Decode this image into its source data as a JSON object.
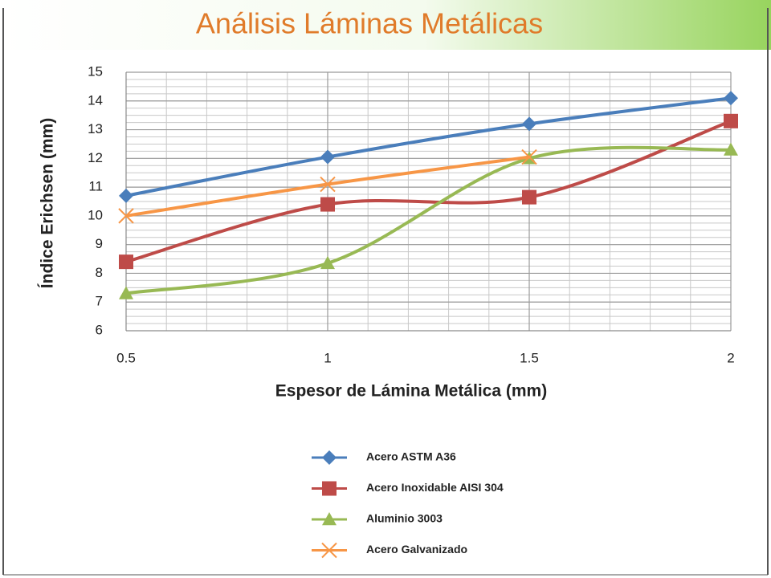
{
  "chart_data": {
    "type": "line",
    "title": "Análisis Láminas Metálicas",
    "x_label": "Espesor de Lámina Metálica (mm)",
    "y_label": "Índice Erichsen (mm)",
    "x": [
      0.5,
      1,
      1.5,
      2
    ],
    "xlim": [
      0.5,
      2
    ],
    "xticks": [
      0.5,
      1,
      1.5,
      2
    ],
    "ylim": [
      6,
      15
    ],
    "yticks": [
      6,
      7,
      8,
      9,
      10,
      11,
      12,
      13,
      14,
      15
    ],
    "grid": true,
    "minor_grid": {
      "x": 0.1,
      "y": 0.25
    },
    "smooth": true,
    "legend": "bottom",
    "series": [
      {
        "name": "Acero ASTM A36",
        "color": "#4a7ebb",
        "marker": "diamond",
        "values": [
          10.7,
          12.05,
          13.2,
          14.1
        ]
      },
      {
        "name": "Acero Inoxidable AISI 304",
        "color": "#be4b48",
        "marker": "square",
        "values": [
          8.4,
          10.4,
          10.65,
          13.3
        ]
      },
      {
        "name": "Aluminio 3003",
        "color": "#98b954",
        "marker": "triangle",
        "values": [
          7.3,
          8.35,
          12.0,
          12.3
        ]
      },
      {
        "name": "Acero Galvanizado",
        "color": "#f79646",
        "marker": "x",
        "values": [
          10.0,
          11.1,
          12.05,
          null
        ]
      }
    ]
  }
}
